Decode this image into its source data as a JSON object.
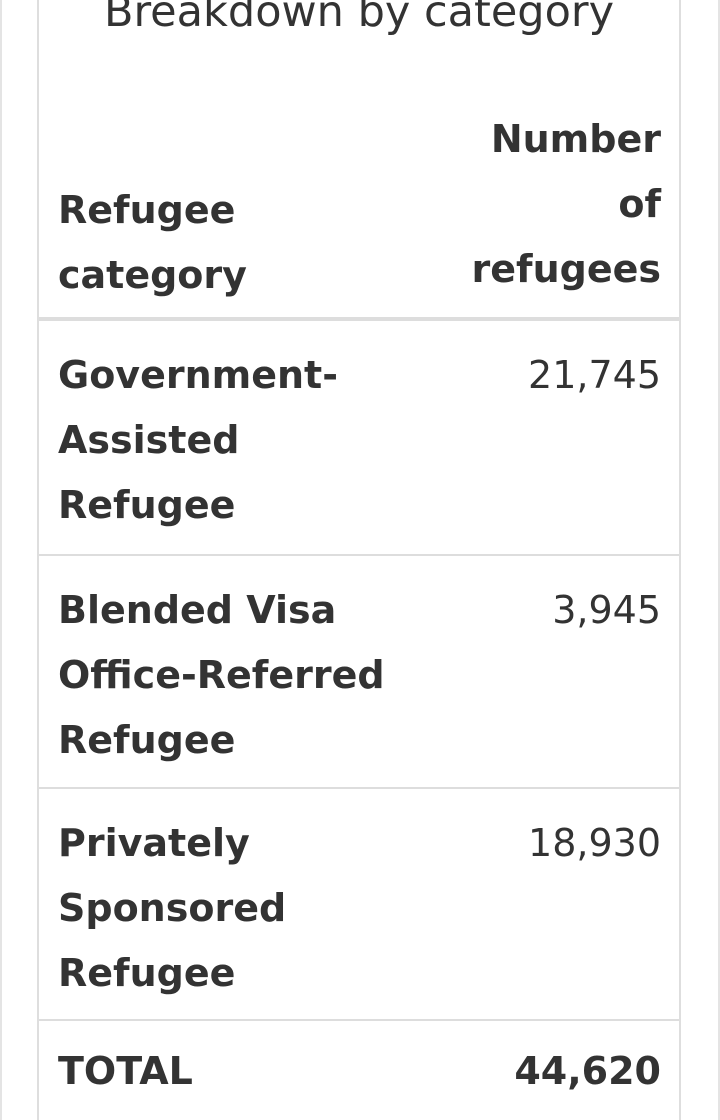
{
  "caption": "Breakdown by category",
  "table": {
    "header": {
      "category_lines": [
        "Refugee",
        "category"
      ],
      "number_lines": [
        "Number",
        "of",
        "refugees"
      ]
    },
    "rows": [
      {
        "category_lines": [
          "Government-",
          "Assisted",
          "Refugee"
        ],
        "value": "21,745"
      },
      {
        "category_lines": [
          "Blended Visa",
          "Office-Referred",
          "Refugee"
        ],
        "value": "3,945"
      },
      {
        "category_lines": [
          "Privately",
          "Sponsored",
          "Refugee"
        ],
        "value": "18,930"
      }
    ],
    "total": {
      "label": "TOTAL",
      "value": "44,620"
    }
  }
}
